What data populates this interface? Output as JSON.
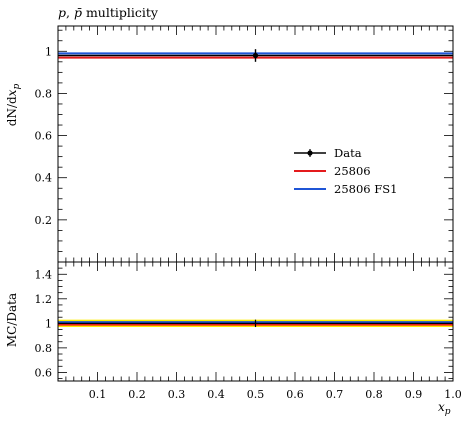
{
  "chart_data": {
    "type": "line",
    "title": "p, p̄ multiplicity",
    "xlabel": "x",
    "xlabel_sub": "p",
    "ylabel": "dN/dx",
    "ylabel_sub": "p",
    "ratio_ylabel": "MC/Data",
    "xlim": [
      0.0,
      1.0
    ],
    "ylim": [
      0.0,
      1.12
    ],
    "ratio_ylim": [
      0.53,
      1.5
    ],
    "x_ticks": [
      "0.1",
      "0.2",
      "0.3",
      "0.4",
      "0.5",
      "0.6",
      "0.7",
      "0.8",
      "0.9",
      "1.0"
    ],
    "y_ticks": [
      "0.2",
      "0.4",
      "0.6",
      "0.8",
      "1"
    ],
    "ratio_y_ticks": [
      "0.6",
      "0.8",
      "1",
      "1.2",
      "1.4"
    ],
    "legend_position": "center-right",
    "data_point": {
      "name": "Data",
      "x": 0.5,
      "y": 0.98,
      "yerr": 0.03,
      "color": "#000000"
    },
    "series": [
      {
        "name": "25806",
        "x": [
          0.0,
          1.0
        ],
        "values": [
          0.97,
          0.97
        ],
        "ratio": [
          0.99,
          0.99
        ],
        "color": "#e41a1c"
      },
      {
        "name": "25806 FS1",
        "x": [
          0.0,
          1.0
        ],
        "values": [
          0.99,
          0.99
        ],
        "ratio": [
          1.01,
          1.01
        ],
        "color": "#1f55d6"
      }
    ],
    "ratio_band": {
      "low": 0.97,
      "high": 1.03,
      "color": "#ffee00"
    }
  }
}
